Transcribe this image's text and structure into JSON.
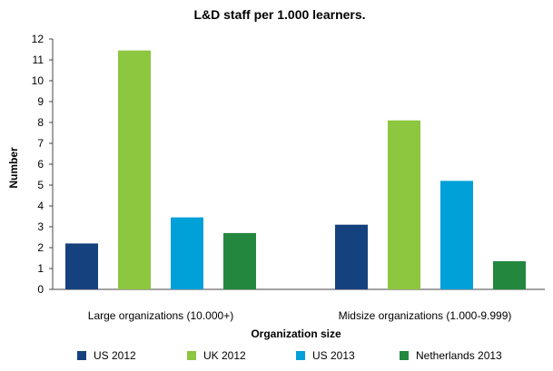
{
  "chart_data": {
    "type": "bar",
    "title": "L&D staff per 1.000 learners.",
    "xlabel": "Organization size",
    "ylabel": "Number",
    "categories": [
      "Large organizations (10.000+)",
      "Midsize organizations (1.000-9.999)"
    ],
    "series": [
      {
        "name": "US 2012",
        "values": [
          2.2,
          3.1
        ],
        "color": "#15427f"
      },
      {
        "name": "UK 2012",
        "values": [
          11.45,
          8.1
        ],
        "color": "#8dc63f"
      },
      {
        "name": "US 2013",
        "values": [
          3.45,
          5.2
        ],
        "color": "#00a0d8"
      },
      {
        "name": "Netherlands 2013",
        "values": [
          2.7,
          1.35
        ],
        "color": "#23883d"
      }
    ],
    "ylim": [
      0,
      12
    ],
    "yticks": [
      0,
      1,
      2,
      3,
      4,
      5,
      6,
      7,
      8,
      9,
      10,
      11,
      12
    ],
    "grid": false,
    "legend_position": "bottom"
  }
}
